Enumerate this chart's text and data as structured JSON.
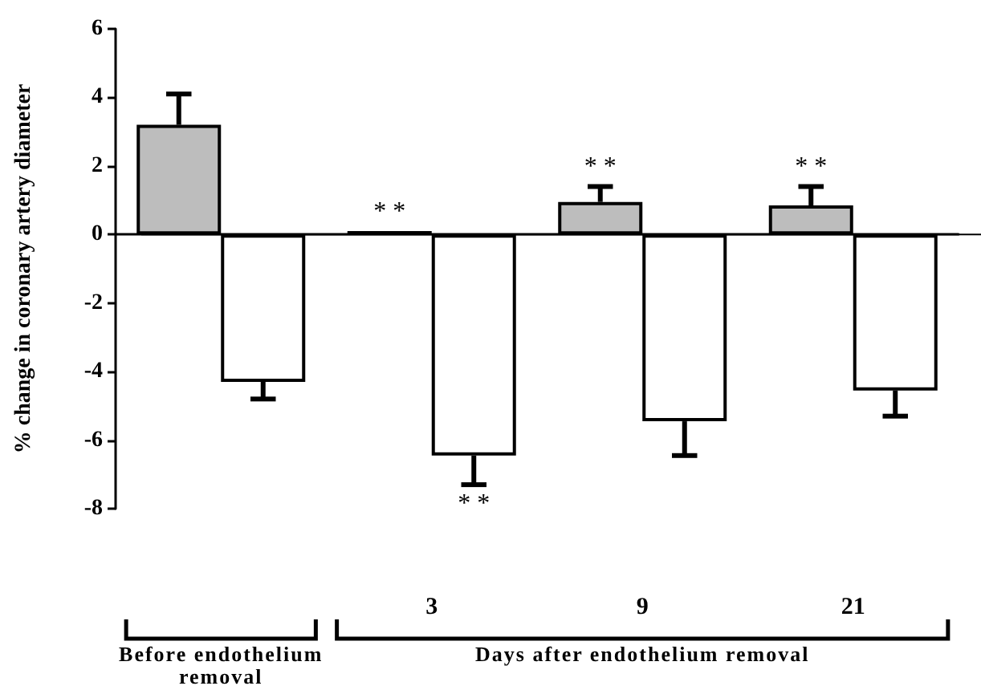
{
  "chart_data": {
    "type": "bar",
    "ylabel": "% change in coronary artery diameter",
    "categories": [
      null,
      "3",
      "9",
      "21"
    ],
    "series": [
      {
        "color": "#bdbdbd",
        "values": [
          3.2,
          0.1,
          0.95,
          0.85
        ],
        "errors": [
          [
            3.2,
            4.1
          ],
          null,
          [
            0.95,
            1.4
          ],
          [
            0.85,
            1.4
          ]
        ]
      },
      {
        "color": "#ffffff",
        "values": [
          -4.3,
          -6.45,
          -5.45,
          -4.55
        ],
        "errors": [
          [
            -4.8,
            -4.3
          ],
          [
            -7.3,
            -6.45
          ],
          [
            -6.45,
            -5.45
          ],
          [
            -5.3,
            -4.55
          ]
        ]
      }
    ],
    "ylim": [
      -8,
      6
    ],
    "yticks": [
      -8,
      -6,
      -4,
      -2,
      0,
      2,
      4,
      6
    ],
    "annotations": [
      {
        "text": "* *",
        "x": "3",
        "y": 0.1
      },
      {
        "text": "* *",
        "x": "3",
        "y": -6.45
      },
      {
        "text": "* *",
        "x": "9",
        "y": 0.95
      },
      {
        "text": "* *",
        "x": "21",
        "y": 0.85
      },
      "Before endothelium removal",
      "Days after endothelium removal"
    ]
  }
}
